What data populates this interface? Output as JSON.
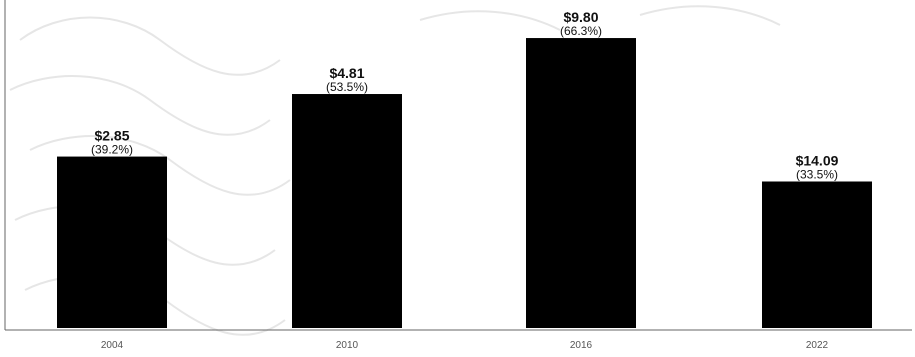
{
  "chart_data": {
    "type": "bar",
    "categories": [
      "2004",
      "2010",
      "2016",
      "2022"
    ],
    "values": [
      39.2,
      53.5,
      66.3,
      33.5
    ],
    "value_labels": [
      "$2.85",
      "$4.81",
      "$9.80",
      "$14.09"
    ],
    "percent_labels": [
      "(39.2%)",
      "(53.5%)",
      "(66.3%)",
      "(33.5%)"
    ],
    "ylim": [
      0,
      75
    ],
    "bar_color": "#000000",
    "grid": false,
    "legend": "none"
  }
}
